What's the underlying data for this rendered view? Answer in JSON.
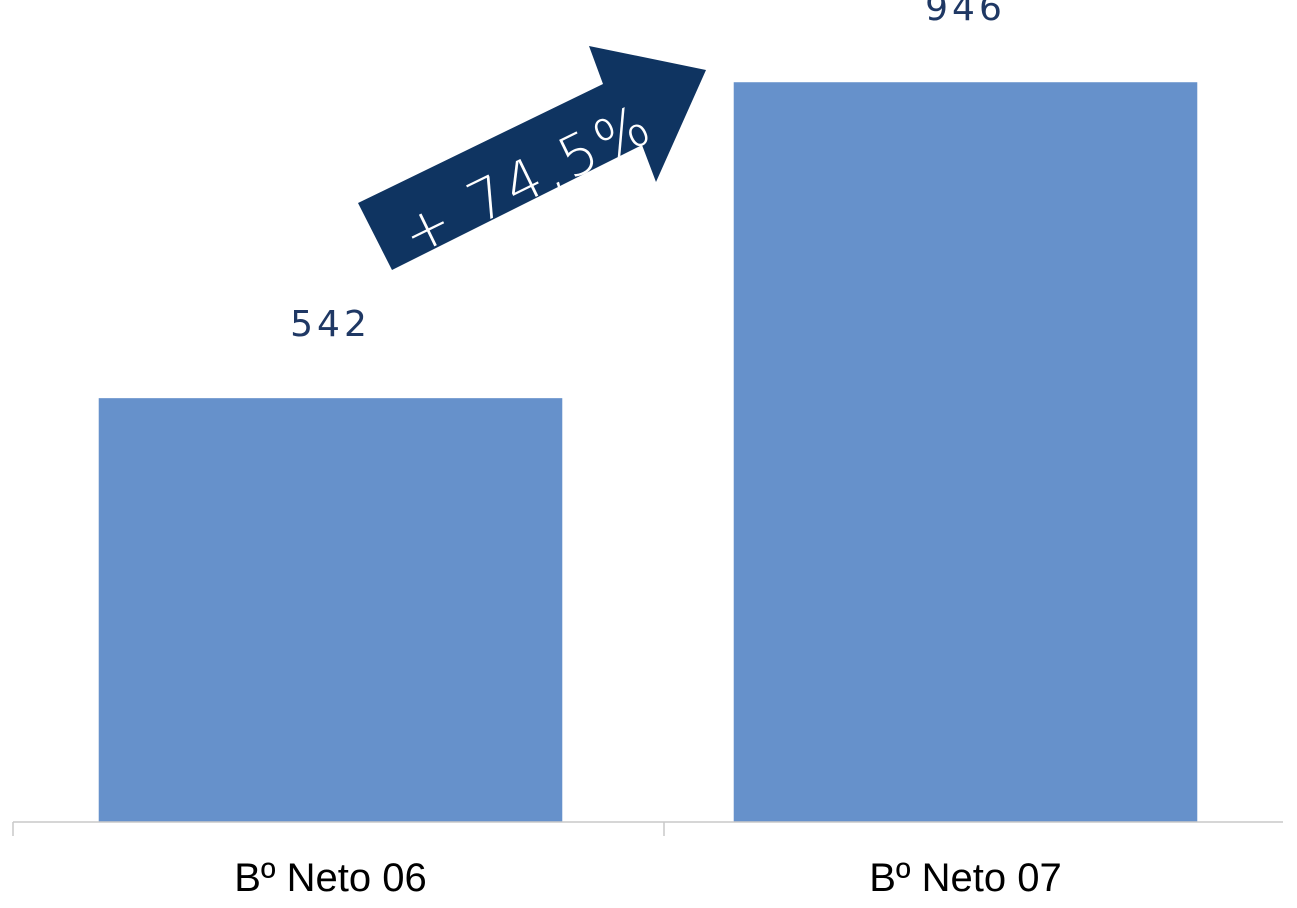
{
  "chart_data": {
    "type": "bar",
    "categories": [
      "Bº Neto 06",
      "Bº Neto 07"
    ],
    "values": [
      542,
      946
    ],
    "data_labels": [
      "542",
      "946"
    ],
    "title": "",
    "xlabel": "",
    "ylabel": "",
    "ylim": [
      0,
      1000
    ],
    "grid": false,
    "legend": "none",
    "annotation": {
      "text": "+ 74,5%",
      "shape": "arrow",
      "direction": "up-right"
    }
  },
  "colors": {
    "bar": "#6691CB",
    "value_label": "#1F3864",
    "arrow": "#0F3461",
    "arrow_text": "#FFFFFF",
    "axis": "#C8C8C8"
  }
}
